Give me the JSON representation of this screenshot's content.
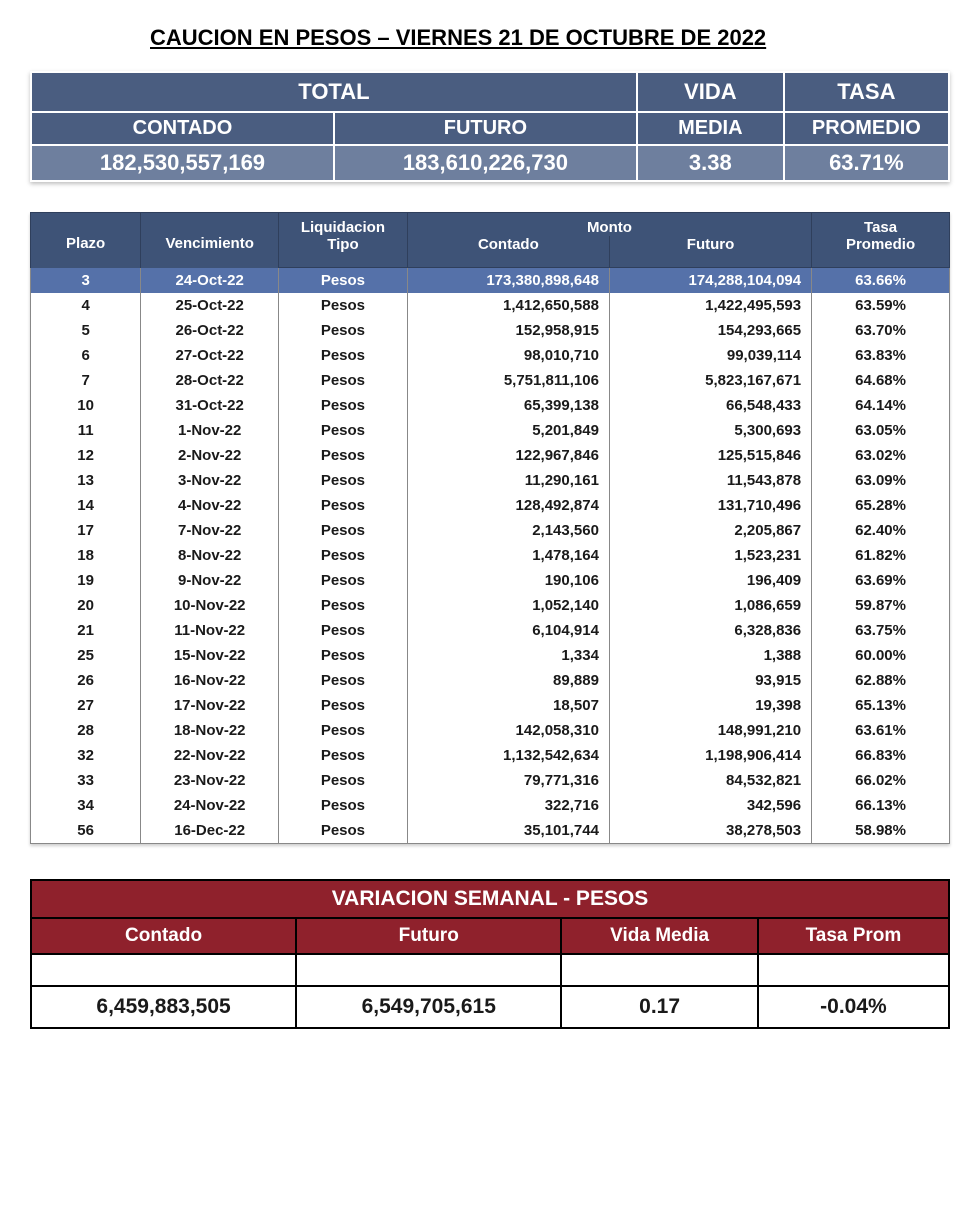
{
  "title": "CAUCION EN PESOS – VIERNES  21 DE OCTUBRE DE 2022",
  "summary": {
    "headers1": {
      "total": "TOTAL",
      "vida": "VIDA",
      "tasa": "TASA"
    },
    "headers2": {
      "contado": "CONTADO",
      "futuro": "FUTURO",
      "media": "MEDIA",
      "promedio": "PROMEDIO"
    },
    "values": {
      "contado": "182,530,557,169",
      "futuro": "183,610,226,730",
      "media": "3.38",
      "promedio": "63.71%"
    },
    "colors": {
      "header_bg": "#4a5d80",
      "value_bg": "#6e7f9e",
      "text": "#ffffff"
    }
  },
  "detail": {
    "headers": {
      "plazo": "Plazo",
      "vencimiento": "Vencimiento",
      "liquidacion": "Liquidacion",
      "tipo": "Tipo",
      "monto": "Monto",
      "contado": "Contado",
      "futuro": "Futuro",
      "tasa": "Tasa",
      "promedio": "Promedio"
    },
    "header_bg": "#3e5377",
    "highlight_bg": "#5571a9",
    "rows": [
      {
        "plazo": "3",
        "venc": "24-Oct-22",
        "tipo": "Pesos",
        "contado": "173,380,898,648",
        "futuro": "174,288,104,094",
        "tasa": "63.66%",
        "hl": true
      },
      {
        "plazo": "4",
        "venc": "25-Oct-22",
        "tipo": "Pesos",
        "contado": "1,412,650,588",
        "futuro": "1,422,495,593",
        "tasa": "63.59%"
      },
      {
        "plazo": "5",
        "venc": "26-Oct-22",
        "tipo": "Pesos",
        "contado": "152,958,915",
        "futuro": "154,293,665",
        "tasa": "63.70%"
      },
      {
        "plazo": "6",
        "venc": "27-Oct-22",
        "tipo": "Pesos",
        "contado": "98,010,710",
        "futuro": "99,039,114",
        "tasa": "63.83%"
      },
      {
        "plazo": "7",
        "venc": "28-Oct-22",
        "tipo": "Pesos",
        "contado": "5,751,811,106",
        "futuro": "5,823,167,671",
        "tasa": "64.68%"
      },
      {
        "plazo": "10",
        "venc": "31-Oct-22",
        "tipo": "Pesos",
        "contado": "65,399,138",
        "futuro": "66,548,433",
        "tasa": "64.14%"
      },
      {
        "plazo": "11",
        "venc": "1-Nov-22",
        "tipo": "Pesos",
        "contado": "5,201,849",
        "futuro": "5,300,693",
        "tasa": "63.05%"
      },
      {
        "plazo": "12",
        "venc": "2-Nov-22",
        "tipo": "Pesos",
        "contado": "122,967,846",
        "futuro": "125,515,846",
        "tasa": "63.02%"
      },
      {
        "plazo": "13",
        "venc": "3-Nov-22",
        "tipo": "Pesos",
        "contado": "11,290,161",
        "futuro": "11,543,878",
        "tasa": "63.09%"
      },
      {
        "plazo": "14",
        "venc": "4-Nov-22",
        "tipo": "Pesos",
        "contado": "128,492,874",
        "futuro": "131,710,496",
        "tasa": "65.28%"
      },
      {
        "plazo": "17",
        "venc": "7-Nov-22",
        "tipo": "Pesos",
        "contado": "2,143,560",
        "futuro": "2,205,867",
        "tasa": "62.40%"
      },
      {
        "plazo": "18",
        "venc": "8-Nov-22",
        "tipo": "Pesos",
        "contado": "1,478,164",
        "futuro": "1,523,231",
        "tasa": "61.82%"
      },
      {
        "plazo": "19",
        "venc": "9-Nov-22",
        "tipo": "Pesos",
        "contado": "190,106",
        "futuro": "196,409",
        "tasa": "63.69%"
      },
      {
        "plazo": "20",
        "venc": "10-Nov-22",
        "tipo": "Pesos",
        "contado": "1,052,140",
        "futuro": "1,086,659",
        "tasa": "59.87%"
      },
      {
        "plazo": "21",
        "venc": "11-Nov-22",
        "tipo": "Pesos",
        "contado": "6,104,914",
        "futuro": "6,328,836",
        "tasa": "63.75%"
      },
      {
        "plazo": "25",
        "venc": "15-Nov-22",
        "tipo": "Pesos",
        "contado": "1,334",
        "futuro": "1,388",
        "tasa": "60.00%"
      },
      {
        "plazo": "26",
        "venc": "16-Nov-22",
        "tipo": "Pesos",
        "contado": "89,889",
        "futuro": "93,915",
        "tasa": "62.88%"
      },
      {
        "plazo": "27",
        "venc": "17-Nov-22",
        "tipo": "Pesos",
        "contado": "18,507",
        "futuro": "19,398",
        "tasa": "65.13%"
      },
      {
        "plazo": "28",
        "venc": "18-Nov-22",
        "tipo": "Pesos",
        "contado": "142,058,310",
        "futuro": "148,991,210",
        "tasa": "63.61%"
      },
      {
        "plazo": "32",
        "venc": "22-Nov-22",
        "tipo": "Pesos",
        "contado": "1,132,542,634",
        "futuro": "1,198,906,414",
        "tasa": "66.83%"
      },
      {
        "plazo": "33",
        "venc": "23-Nov-22",
        "tipo": "Pesos",
        "contado": "79,771,316",
        "futuro": "84,532,821",
        "tasa": "66.02%"
      },
      {
        "plazo": "34",
        "venc": "24-Nov-22",
        "tipo": "Pesos",
        "contado": "322,716",
        "futuro": "342,596",
        "tasa": "66.13%"
      },
      {
        "plazo": "56",
        "venc": "16-Dec-22",
        "tipo": "Pesos",
        "contado": "35,101,744",
        "futuro": "38,278,503",
        "tasa": "58.98%"
      }
    ]
  },
  "variation": {
    "title": "VARIACION SEMANAL - PESOS",
    "headers": {
      "contado": "Contado",
      "futuro": "Futuro",
      "vida": "Vida Media",
      "tasa": "Tasa Prom"
    },
    "values": {
      "contado": "6,459,883,505",
      "futuro": "6,549,705,615",
      "vida": "0.17",
      "tasa": "-0.04%"
    },
    "colors": {
      "header_bg": "#8f212c",
      "text": "#ffffff",
      "border": "#000000"
    }
  }
}
